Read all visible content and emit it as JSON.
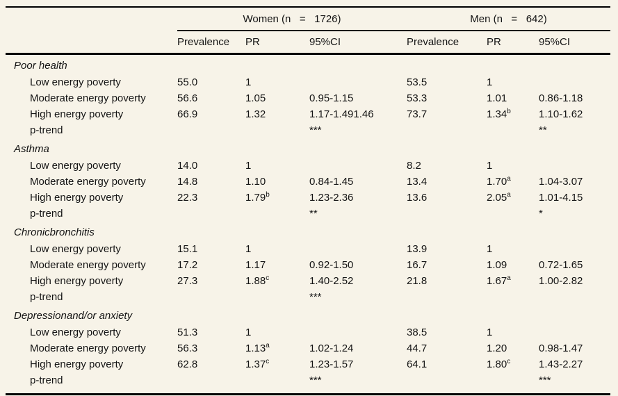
{
  "colors": {
    "background": "#f7f3e8",
    "text": "#141414",
    "rule": "#000000"
  },
  "table": {
    "group_headers": {
      "women": "Women (n   =   1726)",
      "men": "Men (n   =   642)"
    },
    "column_headers": [
      "Prevalence",
      "PR",
      "95%CI",
      "Prevalence",
      "PR",
      "95%CI"
    ],
    "sections": [
      {
        "title": "Poor health",
        "rows": [
          {
            "label": "Low energy poverty",
            "cells": [
              {
                "text": "55.0"
              },
              {
                "text": "1"
              },
              {
                "text": ""
              },
              {
                "text": "53.5"
              },
              {
                "text": "1"
              },
              {
                "text": ""
              }
            ]
          },
          {
            "label": "Moderate energy poverty",
            "cells": [
              {
                "text": "56.6"
              },
              {
                "text": "1.05"
              },
              {
                "text": "0.95-1.15"
              },
              {
                "text": "53.3"
              },
              {
                "text": "1.01"
              },
              {
                "text": "0.86-1.18"
              }
            ]
          },
          {
            "label": "High energy poverty",
            "cells": [
              {
                "text": "66.9"
              },
              {
                "text": "1.32"
              },
              {
                "text": "1.17-1.491.46"
              },
              {
                "text": "73.7"
              },
              {
                "text": "1.34",
                "sup": "b"
              },
              {
                "text": "1.10-1.62"
              }
            ]
          },
          {
            "label": "p-trend",
            "cells": [
              {
                "text": ""
              },
              {
                "text": ""
              },
              {
                "text": "***"
              },
              {
                "text": ""
              },
              {
                "text": ""
              },
              {
                "text": "**"
              }
            ]
          }
        ]
      },
      {
        "title": "Asthma",
        "rows": [
          {
            "label": "Low energy poverty",
            "cells": [
              {
                "text": "14.0"
              },
              {
                "text": "1"
              },
              {
                "text": ""
              },
              {
                "text": "8.2"
              },
              {
                "text": "1"
              },
              {
                "text": ""
              }
            ]
          },
          {
            "label": "Moderate energy poverty",
            "cells": [
              {
                "text": "14.8"
              },
              {
                "text": "1.10"
              },
              {
                "text": "0.84-1.45"
              },
              {
                "text": "13.4"
              },
              {
                "text": "1.70",
                "sup": "a"
              },
              {
                "text": "1.04-3.07"
              }
            ]
          },
          {
            "label": "High energy poverty",
            "cells": [
              {
                "text": "22.3"
              },
              {
                "text": "1.79",
                "sup": "b"
              },
              {
                "text": "1.23-2.36"
              },
              {
                "text": "13.6"
              },
              {
                "text": "2.05",
                "sup": "a"
              },
              {
                "text": "1.01-4.15"
              }
            ]
          },
          {
            "label": "p-trend",
            "cells": [
              {
                "text": ""
              },
              {
                "text": ""
              },
              {
                "text": "**"
              },
              {
                "text": ""
              },
              {
                "text": ""
              },
              {
                "text": "*"
              }
            ]
          }
        ]
      },
      {
        "title": "Chronicbronchitis",
        "rows": [
          {
            "label": "Low energy poverty",
            "cells": [
              {
                "text": "15.1"
              },
              {
                "text": "1"
              },
              {
                "text": ""
              },
              {
                "text": "13.9"
              },
              {
                "text": "1"
              },
              {
                "text": ""
              }
            ]
          },
          {
            "label": "Moderate energy poverty",
            "cells": [
              {
                "text": "17.2"
              },
              {
                "text": "1.17"
              },
              {
                "text": "0.92-1.50"
              },
              {
                "text": "16.7"
              },
              {
                "text": "1.09"
              },
              {
                "text": "0.72-1.65"
              }
            ]
          },
          {
            "label": "High energy poverty",
            "cells": [
              {
                "text": "27.3"
              },
              {
                "text": "1.88",
                "sup": "c"
              },
              {
                "text": "1.40-2.52"
              },
              {
                "text": "21.8"
              },
              {
                "text": "1.67",
                "sup": "a"
              },
              {
                "text": "1.00-2.82"
              }
            ]
          },
          {
            "label": "p-trend",
            "cells": [
              {
                "text": ""
              },
              {
                "text": ""
              },
              {
                "text": "***"
              },
              {
                "text": ""
              },
              {
                "text": ""
              },
              {
                "text": ""
              }
            ]
          }
        ]
      },
      {
        "title": "Depressionand/or anxiety",
        "rows": [
          {
            "label": "Low energy poverty",
            "cells": [
              {
                "text": "51.3"
              },
              {
                "text": "1"
              },
              {
                "text": ""
              },
              {
                "text": "38.5"
              },
              {
                "text": "1"
              },
              {
                "text": ""
              }
            ]
          },
          {
            "label": "Moderate energy poverty",
            "cells": [
              {
                "text": "56.3"
              },
              {
                "text": "1.13",
                "sup": "a"
              },
              {
                "text": "1.02-1.24"
              },
              {
                "text": "44.7"
              },
              {
                "text": "1.20"
              },
              {
                "text": "0.98-1.47"
              }
            ]
          },
          {
            "label": "High energy poverty",
            "cells": [
              {
                "text": "62.8"
              },
              {
                "text": "1.37",
                "sup": "c"
              },
              {
                "text": "1.23-1.57"
              },
              {
                "text": "64.1"
              },
              {
                "text": "1.80",
                "sup": "c"
              },
              {
                "text": "1.43-2.27"
              }
            ]
          },
          {
            "label": "p-trend",
            "cells": [
              {
                "text": ""
              },
              {
                "text": ""
              },
              {
                "text": "***"
              },
              {
                "text": ""
              },
              {
                "text": ""
              },
              {
                "text": "***"
              }
            ]
          }
        ]
      }
    ]
  }
}
